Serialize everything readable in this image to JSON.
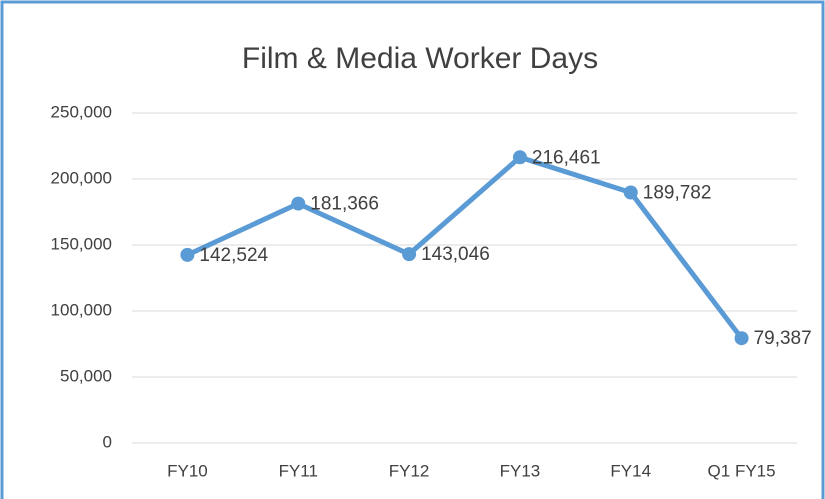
{
  "chart_data": {
    "type": "line",
    "title": "Film & Media Worker Days",
    "categories": [
      "FY10",
      "FY11",
      "FY12",
      "FY13",
      "FY14",
      "Q1 FY15"
    ],
    "series": [
      {
        "name": "Worker Days",
        "color": "#5b9bd5",
        "values": [
          142524,
          181366,
          143046,
          216461,
          189782,
          79387
        ],
        "value_labels": [
          "142,524",
          "181,366",
          "143,046",
          "216,461",
          "189,782",
          "79,387"
        ]
      }
    ],
    "ylim": [
      0,
      250000
    ],
    "yticks": [
      0,
      {
        "value": 50000,
        "label": "50,000"
      },
      {
        "value": 100000,
        "label": "100,000"
      },
      {
        "value": 150000,
        "label": "150,000"
      },
      {
        "value": 200000,
        "label": "200,000"
      },
      {
        "value": 250000,
        "label": "250,000"
      }
    ],
    "grid": true
  }
}
